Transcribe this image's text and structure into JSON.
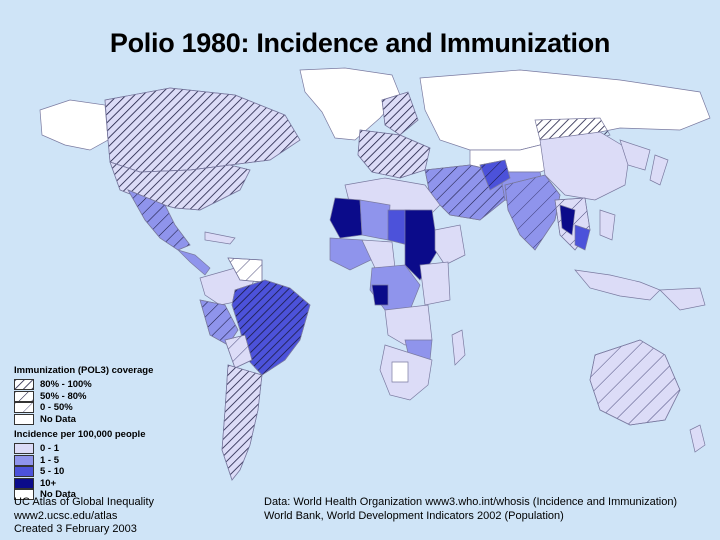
{
  "title": "Polio 1980: Incidence and Immunization",
  "colors": {
    "ocean": "#cfe4f7",
    "no_data": "#ffffff",
    "incidence_0_1": "#dcdcf7",
    "incidence_1_5": "#8f94ec",
    "incidence_5_10": "#4c52da",
    "incidence_10_plus": "#0b0b8a",
    "hatch": "#1a1a40"
  },
  "legend": {
    "immunization_heading": "Immunization (POL3) coverage",
    "immunization_items": [
      {
        "label": "80% - 100%",
        "pattern": "dense-hatch"
      },
      {
        "label": "50% - 80%",
        "pattern": "medium-hatch"
      },
      {
        "label": "0 - 50%",
        "pattern": "sparse-hatch"
      },
      {
        "label": "No Data",
        "pattern": "none"
      }
    ],
    "incidence_heading": "Incidence per 100,000 people",
    "incidence_items": [
      {
        "label": "0 - 1",
        "color": "#dcdcf7"
      },
      {
        "label": "1 - 5",
        "color": "#8f94ec"
      },
      {
        "label": "5 - 10",
        "color": "#4c52da"
      },
      {
        "label": "10+",
        "color": "#0b0b8a"
      },
      {
        "label": "No Data",
        "color": "#ffffff"
      }
    ]
  },
  "credits": {
    "left_line1": "UC Atlas of Global Inequality",
    "left_line2": "www2.ucsc.edu/atlas",
    "left_line3": "Created 3 February 2003",
    "right_line1": "Data: World Health Organization www3.who.int/whosis (Incidence and Immunization)",
    "right_line2": "World Bank, World Development Indicators 2002 (Population)"
  }
}
